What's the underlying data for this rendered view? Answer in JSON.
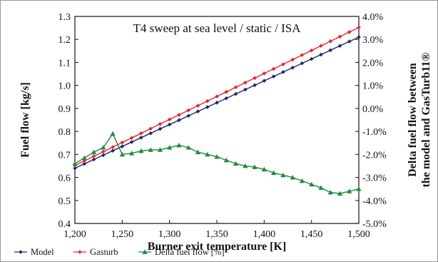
{
  "chart_data": {
    "type": "line",
    "title": "T4 sweep at sea level / static / ISA",
    "xlabel": "Burner exit temperature [K]",
    "ylabel": "Fuel flow [kg/s]",
    "y2label_line1": "Delta fuel flow between",
    "y2label_line2": "the model and GasTurb11®",
    "xlim": [
      1200,
      1500
    ],
    "ylim": [
      0.4,
      1.3
    ],
    "y2lim": [
      -5.0,
      4.0
    ],
    "grid": false,
    "legend_position": "bottom",
    "x_ticks": [
      "1,200",
      "1,250",
      "1,300",
      "1,350",
      "1,400",
      "1,450",
      "1,500"
    ],
    "y_ticks": [
      "0.4",
      "0.5",
      "0.6",
      "0.7",
      "0.8",
      "0.9",
      "1.0",
      "1.1",
      "1.2",
      "1.3"
    ],
    "y2_ticks": [
      "-5.0%",
      "-4.0%",
      "-3.0%",
      "-2.0%",
      "-1.0%",
      "0.0%",
      "1.0%",
      "2.0%",
      "3.0%",
      "4.0%"
    ],
    "x": [
      1200,
      1210,
      1220,
      1230,
      1240,
      1250,
      1260,
      1270,
      1280,
      1290,
      1300,
      1310,
      1320,
      1330,
      1340,
      1350,
      1360,
      1370,
      1380,
      1390,
      1400,
      1410,
      1420,
      1430,
      1440,
      1450,
      1460,
      1470,
      1480,
      1490,
      1500
    ],
    "series": [
      {
        "name": "Model",
        "axis": "left",
        "color": "#1f2a6b",
        "marker": "diamond",
        "values": [
          0.64,
          0.659,
          0.678,
          0.697,
          0.716,
          0.735,
          0.754,
          0.773,
          0.792,
          0.811,
          0.83,
          0.849,
          0.868,
          0.887,
          0.906,
          0.925,
          0.944,
          0.963,
          0.982,
          1.001,
          1.02,
          1.039,
          1.058,
          1.077,
          1.096,
          1.115,
          1.134,
          1.153,
          1.172,
          1.191,
          1.21
        ]
      },
      {
        "name": "Gasturb",
        "axis": "left",
        "color": "#e8262b",
        "marker": "diamond",
        "values": [
          0.652,
          0.672,
          0.692,
          0.712,
          0.732,
          0.752,
          0.772,
          0.792,
          0.812,
          0.832,
          0.852,
          0.872,
          0.892,
          0.912,
          0.932,
          0.952,
          0.972,
          0.992,
          1.012,
          1.032,
          1.052,
          1.072,
          1.092,
          1.112,
          1.132,
          1.152,
          1.172,
          1.192,
          1.212,
          1.232,
          1.252
        ]
      },
      {
        "name": "Delta fuel flow [%]",
        "axis": "right",
        "color": "#1e8a3e",
        "marker": "triangle",
        "values": [
          -2.4,
          -2.15,
          -1.9,
          -1.7,
          -1.1,
          -2.0,
          -1.95,
          -1.85,
          -1.8,
          -1.8,
          -1.7,
          -1.6,
          -1.7,
          -1.9,
          -2.0,
          -2.1,
          -2.25,
          -2.4,
          -2.5,
          -2.55,
          -2.65,
          -2.8,
          -2.9,
          -3.0,
          -3.15,
          -3.3,
          -3.45,
          -3.65,
          -3.7,
          -3.6,
          -3.5
        ]
      }
    ]
  }
}
